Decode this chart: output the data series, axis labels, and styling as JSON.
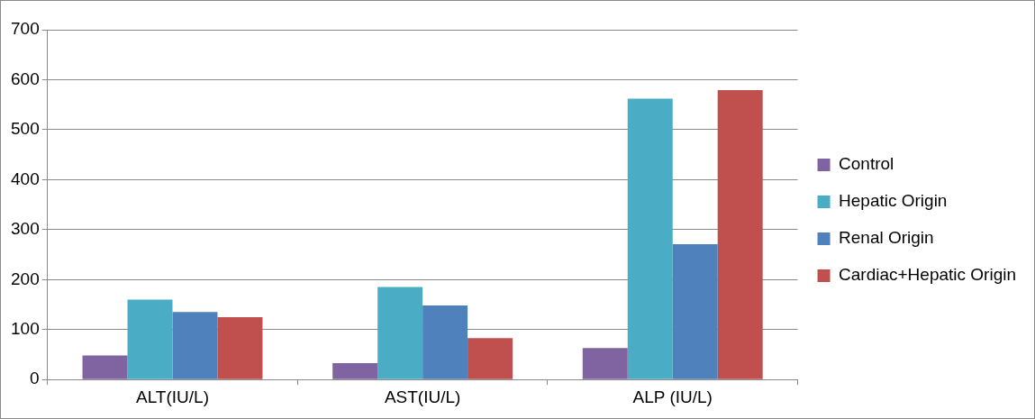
{
  "chart_data": {
    "type": "bar",
    "categories": [
      "ALT(IU/L)",
      "AST(IU/L)",
      "ALP (IU/L)"
    ],
    "series": [
      {
        "name": "Control",
        "color": "#8064a2",
        "values": [
          48,
          33,
          63
        ]
      },
      {
        "name": "Hepatic Origin",
        "color": "#4bacc6",
        "values": [
          160,
          185,
          562
        ]
      },
      {
        "name": "Renal Origin",
        "color": "#4f81bd",
        "values": [
          135,
          148,
          271
        ]
      },
      {
        "name": "Cardiac+Hepatic Origin",
        "color": "#c0504d",
        "values": [
          125,
          83,
          579
        ]
      }
    ],
    "ylim": [
      0,
      700
    ],
    "yticks": [
      0,
      100,
      200,
      300,
      400,
      500,
      600,
      700
    ],
    "grid": "y",
    "legend": "right"
  }
}
